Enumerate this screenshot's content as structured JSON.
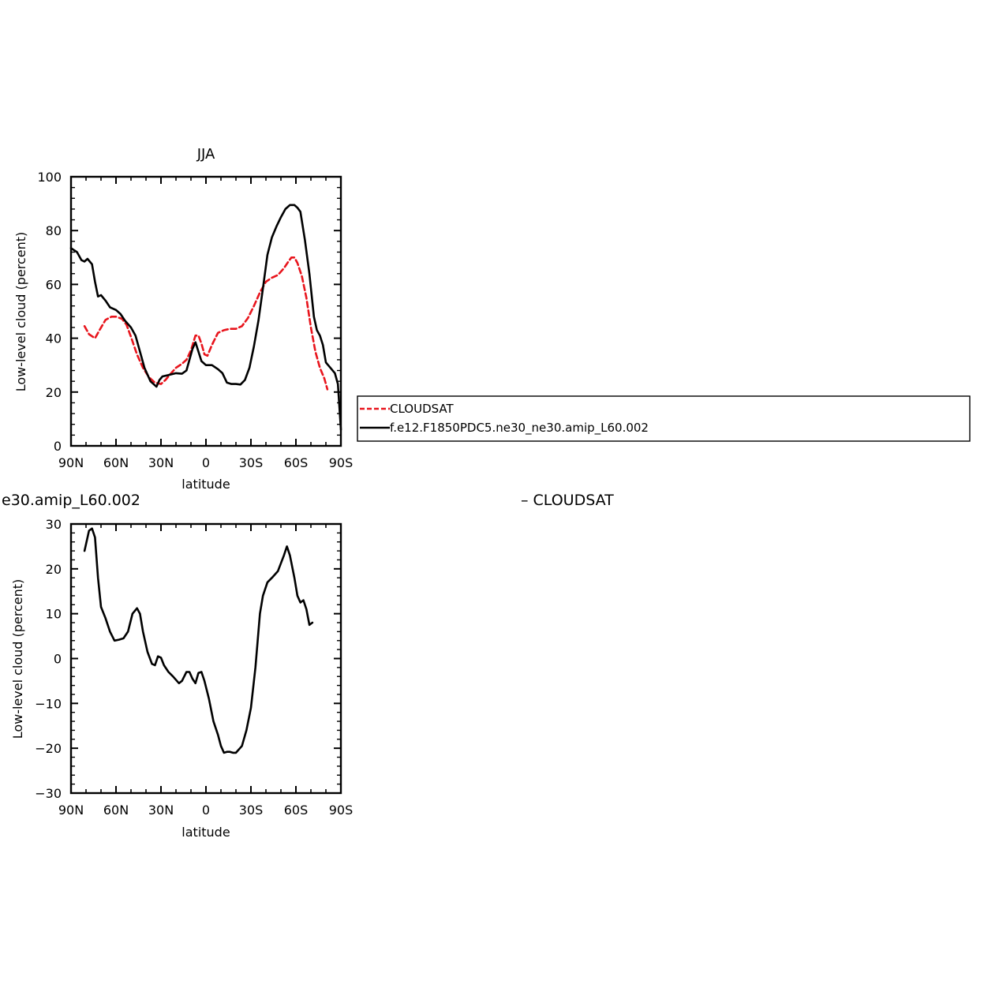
{
  "chart_data": [
    {
      "type": "line",
      "title": "JJA",
      "xlabel": "latitude",
      "ylabel": "Low-level cloud (percent)",
      "xlim": [
        90,
        -90
      ],
      "ylim": [
        0,
        100
      ],
      "x_ticks": [
        {
          "value": 90,
          "label": "90N"
        },
        {
          "value": 60,
          "label": "60N"
        },
        {
          "value": 30,
          "label": "30N"
        },
        {
          "value": 0,
          "label": "0"
        },
        {
          "value": -30,
          "label": "30S"
        },
        {
          "value": -60,
          "label": "60S"
        },
        {
          "value": -90,
          "label": "90S"
        }
      ],
      "y_ticks": [
        {
          "value": 0,
          "label": "0"
        },
        {
          "value": 20,
          "label": "20"
        },
        {
          "value": 40,
          "label": "40"
        },
        {
          "value": 60,
          "label": "60"
        },
        {
          "value": 80,
          "label": "80"
        },
        {
          "value": 100,
          "label": "100"
        }
      ],
      "legend": {
        "placement": "right",
        "entries": [
          "CLOUDSAT",
          "f.e12.F1850PDC5.ne30_ne30.amip_L60.002"
        ]
      },
      "series": [
        {
          "name": "CLOUDSAT",
          "color": "#e8141c",
          "dash": true,
          "points": [
            [
              81,
              44.5
            ],
            [
              78,
              41.5
            ],
            [
              74,
              40
            ],
            [
              71,
              43
            ],
            [
              67,
              46.8
            ],
            [
              63,
              48
            ],
            [
              60,
              48
            ],
            [
              56,
              47.2
            ],
            [
              53,
              45
            ],
            [
              50,
              40.5
            ],
            [
              46,
              34
            ],
            [
              42,
              29
            ],
            [
              38,
              25.5
            ],
            [
              34,
              23.5
            ],
            [
              30,
              23
            ],
            [
              27,
              24.5
            ],
            [
              24,
              26.5
            ],
            [
              20,
              29
            ],
            [
              16,
              30.5
            ],
            [
              13,
              32
            ],
            [
              10,
              35.5
            ],
            [
              7,
              41
            ],
            [
              5,
              41
            ],
            [
              3,
              38
            ],
            [
              1,
              34
            ],
            [
              -1,
              33.5
            ],
            [
              -4,
              37.5
            ],
            [
              -8,
              42
            ],
            [
              -12,
              43
            ],
            [
              -16,
              43.5
            ],
            [
              -20,
              43.5
            ],
            [
              -24,
              44.5
            ],
            [
              -28,
              47.5
            ],
            [
              -32,
              52
            ],
            [
              -36,
              57
            ],
            [
              -40,
              61
            ],
            [
              -44,
              62.5
            ],
            [
              -48,
              63.5
            ],
            [
              -52,
              66
            ],
            [
              -55,
              68.5
            ],
            [
              -57,
              70
            ],
            [
              -59,
              70
            ],
            [
              -61,
              68
            ],
            [
              -64,
              63
            ],
            [
              -67,
              55
            ],
            [
              -70,
              44
            ],
            [
              -73,
              35
            ],
            [
              -76,
              29
            ],
            [
              -79,
              25
            ],
            [
              -81,
              21
            ]
          ]
        },
        {
          "name": "f.e12.F1850PDC5.ne30_ne30.amip_L60.002",
          "color": "#000000",
          "dash": false,
          "points": [
            [
              90,
              73.5
            ],
            [
              86,
              72
            ],
            [
              83,
              69
            ],
            [
              81,
              68.5
            ],
            [
              79,
              69.5
            ],
            [
              76,
              67.5
            ],
            [
              74,
              61
            ],
            [
              72,
              55.5
            ],
            [
              70,
              56
            ],
            [
              67,
              54
            ],
            [
              64,
              51.5
            ],
            [
              60,
              50.5
            ],
            [
              57,
              49
            ],
            [
              54,
              46.5
            ],
            [
              50,
              44
            ],
            [
              47,
              41
            ],
            [
              44,
              35
            ],
            [
              41,
              29
            ],
            [
              37,
              24
            ],
            [
              33,
              22
            ],
            [
              31,
              24.5
            ],
            [
              29,
              25.8
            ],
            [
              25,
              26.3
            ],
            [
              20,
              27
            ],
            [
              16,
              26.8
            ],
            [
              13,
              28
            ],
            [
              11,
              32
            ],
            [
              9,
              36
            ],
            [
              7,
              38.5
            ],
            [
              5,
              35
            ],
            [
              3,
              31.5
            ],
            [
              0,
              30
            ],
            [
              -4,
              30
            ],
            [
              -8,
              28.5
            ],
            [
              -11,
              27
            ],
            [
              -14,
              23.5
            ],
            [
              -17,
              23
            ],
            [
              -20,
              23
            ],
            [
              -23,
              22.8
            ],
            [
              -26,
              24.5
            ],
            [
              -29,
              29
            ],
            [
              -32,
              37
            ],
            [
              -35,
              46.5
            ],
            [
              -38,
              58.5
            ],
            [
              -41,
              71
            ],
            [
              -44,
              77.5
            ],
            [
              -47,
              81.5
            ],
            [
              -50,
              85
            ],
            [
              -53,
              88
            ],
            [
              -56,
              89.5
            ],
            [
              -59,
              89.5
            ],
            [
              -61,
              88.5
            ],
            [
              -63,
              87
            ],
            [
              -66,
              76.5
            ],
            [
              -69,
              64
            ],
            [
              -72,
              48
            ],
            [
              -74,
              43
            ],
            [
              -76,
              41
            ],
            [
              -78,
              37.5
            ],
            [
              -80,
              31
            ],
            [
              -83,
              29
            ],
            [
              -86,
              27
            ],
            [
              -88,
              23
            ],
            [
              -90,
              6
            ]
          ]
        }
      ]
    },
    {
      "type": "line",
      "title_left": "e30.amip_L60.002",
      "title_right": "– CLOUDSAT",
      "xlabel": "latitude",
      "ylabel": "Low-level cloud (percent)",
      "xlim": [
        90,
        -90
      ],
      "ylim": [
        -30,
        30
      ],
      "x_ticks": [
        {
          "value": 90,
          "label": "90N"
        },
        {
          "value": 60,
          "label": "60N"
        },
        {
          "value": 30,
          "label": "30N"
        },
        {
          "value": 0,
          "label": "0"
        },
        {
          "value": -30,
          "label": "30S"
        },
        {
          "value": -60,
          "label": "60S"
        },
        {
          "value": -90,
          "label": "90S"
        }
      ],
      "y_ticks": [
        {
          "value": -30,
          "label": "−30"
        },
        {
          "value": -20,
          "label": "−20"
        },
        {
          "value": -10,
          "label": "−10"
        },
        {
          "value": 0,
          "label": "0"
        },
        {
          "value": 10,
          "label": "10"
        },
        {
          "value": 20,
          "label": "20"
        },
        {
          "value": 30,
          "label": "30"
        }
      ],
      "series": [
        {
          "color": "#000000",
          "dash": false,
          "points": [
            [
              81,
              24
            ],
            [
              78,
              28.5
            ],
            [
              76,
              29
            ],
            [
              74,
              27
            ],
            [
              72,
              18
            ],
            [
              70,
              11.5
            ],
            [
              67,
              9
            ],
            [
              64,
              6
            ],
            [
              61,
              4
            ],
            [
              58,
              4.2
            ],
            [
              55,
              4.5
            ],
            [
              52,
              6
            ],
            [
              49,
              10
            ],
            [
              46,
              11.2
            ],
            [
              44,
              10
            ],
            [
              42,
              6
            ],
            [
              39,
              1.5
            ],
            [
              36,
              -1.2
            ],
            [
              34,
              -1.5
            ],
            [
              32,
              0.5
            ],
            [
              30,
              0.2
            ],
            [
              28,
              -1.5
            ],
            [
              25,
              -3
            ],
            [
              22,
              -4
            ],
            [
              18,
              -5.5
            ],
            [
              16,
              -5
            ],
            [
              13,
              -3
            ],
            [
              11,
              -3
            ],
            [
              9,
              -4.5
            ],
            [
              7,
              -5.5
            ],
            [
              5,
              -3.2
            ],
            [
              3,
              -3
            ],
            [
              1,
              -5
            ],
            [
              -2,
              -9
            ],
            [
              -5,
              -14
            ],
            [
              -8,
              -17
            ],
            [
              -10,
              -19.5
            ],
            [
              -12,
              -21
            ],
            [
              -14,
              -20.8
            ],
            [
              -16,
              -20.8
            ],
            [
              -18,
              -21
            ],
            [
              -20,
              -21
            ],
            [
              -24,
              -19.5
            ],
            [
              -27,
              -16
            ],
            [
              -30,
              -11
            ],
            [
              -33,
              -2
            ],
            [
              -36,
              10
            ],
            [
              -38,
              14
            ],
            [
              -41,
              17
            ],
            [
              -44,
              18
            ],
            [
              -48,
              19.5
            ],
            [
              -52,
              23
            ],
            [
              -54,
              25
            ],
            [
              -56,
              23
            ],
            [
              -59,
              18
            ],
            [
              -61,
              14
            ],
            [
              -63,
              12.5
            ],
            [
              -65,
              13
            ],
            [
              -67,
              11
            ],
            [
              -69,
              7.5
            ],
            [
              -71,
              8
            ]
          ]
        }
      ]
    }
  ]
}
